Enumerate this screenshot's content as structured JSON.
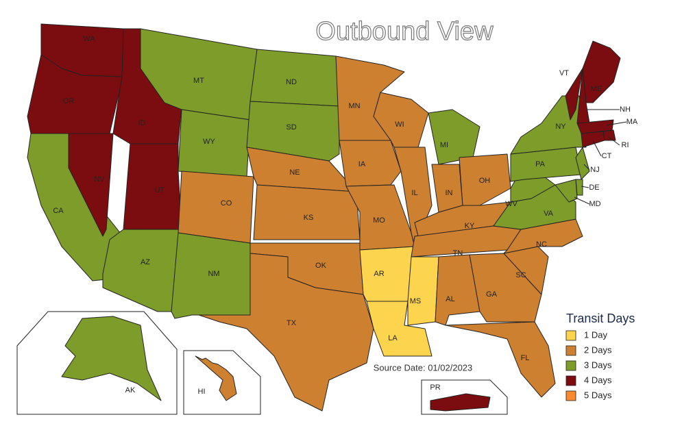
{
  "title": "Outbound View",
  "states": [
    {
      "label": "WA",
      "color": "#7b0d10"
    },
    {
      "label": "OR",
      "color": "#7b0d10"
    },
    {
      "label": "CA",
      "color": "#7d9c2a"
    },
    {
      "label": "NV",
      "color": "#7b0d10"
    },
    {
      "label": "ID",
      "color": "#7b0d10"
    },
    {
      "label": "MT",
      "color": "#7d9c2a"
    },
    {
      "label": "WY",
      "color": "#7d9c2a"
    },
    {
      "label": "UT",
      "color": "#7b0d10"
    },
    {
      "label": "AZ",
      "color": "#7d9c2a"
    },
    {
      "label": "CO",
      "color": "#cc8030"
    },
    {
      "label": "NM",
      "color": "#7d9c2a"
    },
    {
      "label": "ND",
      "color": "#7d9c2a"
    },
    {
      "label": "SD",
      "color": "#7d9c2a"
    },
    {
      "label": "NE",
      "color": "#cc8030"
    },
    {
      "label": "KS",
      "color": "#cc8030"
    },
    {
      "label": "OK",
      "color": "#cc8030"
    },
    {
      "label": "TX",
      "color": "#cc8030"
    },
    {
      "label": "MN",
      "color": "#cc8030"
    },
    {
      "label": "IA",
      "color": "#cc8030"
    },
    {
      "label": "MO",
      "color": "#cc8030"
    },
    {
      "label": "AR",
      "color": "#fdd44e"
    },
    {
      "label": "LA",
      "color": "#fdd44e"
    },
    {
      "label": "WI",
      "color": "#cc8030"
    },
    {
      "label": "IL",
      "color": "#cc8030"
    },
    {
      "label": "MI",
      "color": "#7d9c2a"
    },
    {
      "label": "IN",
      "color": "#cc8030"
    },
    {
      "label": "OH",
      "color": "#cc8030"
    },
    {
      "label": "KY",
      "color": "#cc8030"
    },
    {
      "label": "TN",
      "color": "#cc8030"
    },
    {
      "label": "MS",
      "color": "#fdd44e"
    },
    {
      "label": "AL",
      "color": "#cc8030"
    },
    {
      "label": "GA",
      "color": "#cc8030"
    },
    {
      "label": "FL",
      "color": "#cc8030"
    },
    {
      "label": "SC",
      "color": "#cc8030"
    },
    {
      "label": "NC",
      "color": "#cc8030"
    },
    {
      "label": "VA",
      "color": "#7d9c2a"
    },
    {
      "label": "WV",
      "color": "#7d9c2a"
    },
    {
      "label": "PA",
      "color": "#7d9c2a"
    },
    {
      "label": "NY",
      "color": "#7d9c2a"
    },
    {
      "label": "ME",
      "color": "#7b0d10"
    },
    {
      "label": "VT",
      "color": "#7b0d10"
    },
    {
      "label": "NH",
      "color": "#7b0d10"
    },
    {
      "label": "MA",
      "color": "#7b0d10"
    },
    {
      "label": "RI",
      "color": "#7b0d10"
    },
    {
      "label": "CT",
      "color": "#7b0d10"
    },
    {
      "label": "NJ",
      "color": "#7d9c2a"
    },
    {
      "label": "DE",
      "color": "#7d9c2a"
    },
    {
      "label": "MD",
      "color": "#7d9c2a"
    },
    {
      "label": "AK",
      "color": "#7d9c2a"
    },
    {
      "label": "HI",
      "color": "#cc8030"
    },
    {
      "label": "PR",
      "color": "#7b0d10"
    }
  ],
  "legend": {
    "title": "Transit Days",
    "items": [
      {
        "label": "1 Day",
        "color": "#fdd44e"
      },
      {
        "label": "2 Days",
        "color": "#cc8030"
      },
      {
        "label": "3 Days",
        "color": "#7d9c2a"
      },
      {
        "label": "4 Days",
        "color": "#7b0d10"
      },
      {
        "label": "5 Days",
        "color": "#f88a2f"
      }
    ]
  },
  "source": "Source Date: 01/02/2023"
}
